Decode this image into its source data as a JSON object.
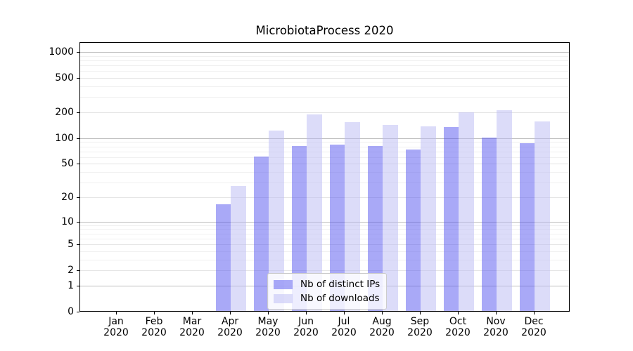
{
  "chart_data": {
    "type": "bar",
    "title": "MicrobiotaProcess 2020",
    "categories": [
      "Jan 2020",
      "Feb 2020",
      "Mar 2020",
      "Apr 2020",
      "May 2020",
      "Jun 2020",
      "Jul 2020",
      "Aug 2020",
      "Sep 2020",
      "Oct 2020",
      "Nov 2020",
      "Dec 2020"
    ],
    "series": [
      {
        "name": "Nb of distinct IPs",
        "color": "rgba(83,83,239,0.5)",
        "solid_color": "#a9a9f7",
        "values": [
          0,
          0,
          0,
          16,
          60,
          80,
          82,
          80,
          72,
          133,
          100,
          85
        ]
      },
      {
        "name": "Nb of downloads",
        "color": "rgba(185,185,243,0.5)",
        "solid_color": "#dcdcf9",
        "values": [
          0,
          0,
          0,
          27,
          120,
          185,
          151,
          140,
          135,
          196,
          206,
          153
        ]
      }
    ],
    "yscale": "log1p",
    "yticks": [
      0,
      1,
      2,
      5,
      10,
      20,
      50,
      100,
      200,
      500,
      1000
    ],
    "ylim": [
      0,
      1300
    ],
    "xlabel": "",
    "ylabel": "",
    "grid": true,
    "legend_position": "inside lower-center"
  },
  "colors": {
    "major_grid": "#bdbdbd",
    "labeled_minor_grid": "#e4e4e4",
    "minor_grid": "#f0f0f0",
    "spine": "#000000",
    "text": "#000000",
    "legend_border": "#cccccc",
    "legend_bg": "rgba(255,255,255,0.8)"
  }
}
